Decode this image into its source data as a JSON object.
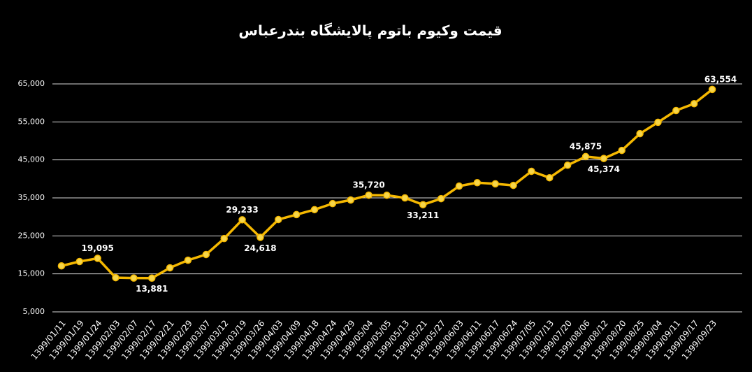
{
  "chart_data": {
    "type": "line",
    "title": "قیمت وکیوم باتوم پالایشگاه بندرعباس",
    "categories": [
      "1399/01/11",
      "1399/01/19",
      "1399/01/24",
      "1399/02/03",
      "1399/02/07",
      "1399/02/17",
      "1399/02/21",
      "1399/02/29",
      "1399/03/07",
      "1399/03/12",
      "1399/03/19",
      "1399/03/26",
      "1399/04/03",
      "1399/04/09",
      "1399/04/18",
      "1399/04/24",
      "1399/04/29",
      "1399/05/04",
      "1399/05/05",
      "1399/05/13",
      "1399/05/21",
      "1399/05/27",
      "1399/06/03",
      "1399/06/11",
      "1399/06/17",
      "1399/06/24",
      "1399/07/05",
      "1399/07/13",
      "1399/07/20",
      "1399/08/06",
      "1399/08/12",
      "1399/08/20",
      "1399/08/25",
      "1399/09/04",
      "1399/09/11",
      "1399/09/17",
      "1399/09/23"
    ],
    "series": [
      {
        "color": "#f5b800",
        "values": [
          17100,
          18250,
          19095,
          14000,
          13900,
          13881,
          16600,
          18600,
          20100,
          24300,
          29233,
          24618,
          29300,
          30600,
          31900,
          33500,
          34450,
          35720,
          35700,
          35000,
          33211,
          34800,
          38100,
          39000,
          38700,
          38300,
          42000,
          40300,
          43600,
          45875,
          45374,
          47500,
          51900,
          54900,
          58000,
          59800,
          63554
        ],
        "value_labels": [
          null,
          null,
          "19,095",
          null,
          null,
          "13,881",
          null,
          null,
          null,
          null,
          "29,233",
          "24,618",
          null,
          null,
          null,
          null,
          null,
          "35,720",
          null,
          null,
          "33,211",
          null,
          null,
          null,
          null,
          null,
          null,
          null,
          null,
          "45,875",
          "45,374",
          null,
          null,
          null,
          null,
          null,
          "63,554"
        ]
      }
    ],
    "ylim": [
      5000,
      65000
    ],
    "yticks": [
      {
        "value": 5000,
        "label": "5,000"
      },
      {
        "value": 15000,
        "label": "15,000"
      },
      {
        "value": 25000,
        "label": "25,000"
      },
      {
        "value": 35000,
        "label": "35,000"
      },
      {
        "value": 45000,
        "label": "45,000"
      },
      {
        "value": 55000,
        "label": "55,000"
      },
      {
        "value": 65000,
        "label": "65,000"
      }
    ],
    "grid": true
  }
}
